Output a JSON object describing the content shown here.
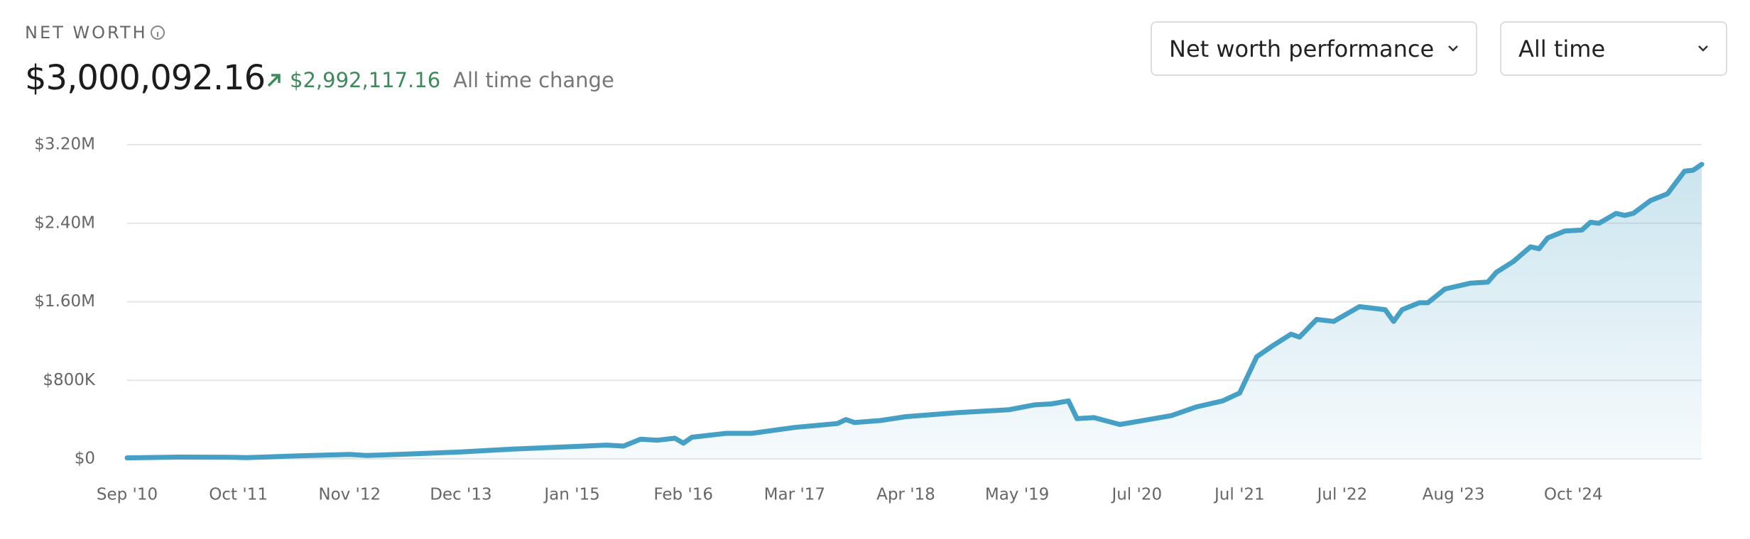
{
  "header": {
    "label": "NET WORTH",
    "value": "$3,000,092.16",
    "change": "$2,992,117.16",
    "change_label": "All time change"
  },
  "controls": {
    "view": "Net worth performance",
    "range": "All time"
  },
  "chart_data": {
    "type": "area",
    "x": [
      "2010-09",
      "2011-03",
      "2011-09",
      "2011-11",
      "2012-05",
      "2012-11",
      "2013-01",
      "2013-06",
      "2013-12",
      "2014-06",
      "2015-01",
      "2015-05",
      "2015-07",
      "2015-09",
      "2015-11",
      "2016-01",
      "2016-02",
      "2016-03",
      "2016-07",
      "2016-10",
      "2017-03",
      "2017-08",
      "2017-09",
      "2017-10",
      "2018-01",
      "2018-04",
      "2018-10",
      "2019-04",
      "2019-07",
      "2019-09",
      "2019-11",
      "2019-12",
      "2020-02",
      "2020-05",
      "2020-07",
      "2020-11",
      "2021-02",
      "2021-05",
      "2021-07",
      "2021-09",
      "2021-11",
      "2022-01",
      "2022-02",
      "2022-04",
      "2022-06",
      "2022-09",
      "2022-12",
      "2023-01",
      "2023-02",
      "2023-04",
      "2023-05",
      "2023-07",
      "2023-10",
      "2023-12",
      "2024-01",
      "2024-03",
      "2024-05",
      "2024-06",
      "2024-07",
      "2024-09",
      "2024-11",
      "2024-12",
      "2025-01",
      "2025-03",
      "2025-04",
      "2025-05",
      "2025-07",
      "2025-09",
      "2025-11",
      "2025-12",
      "2026-01"
    ],
    "values": [
      10000,
      18000,
      16000,
      12000,
      30000,
      45000,
      35000,
      50000,
      70000,
      100000,
      125000,
      140000,
      130000,
      200000,
      190000,
      210000,
      160000,
      220000,
      260000,
      260000,
      320000,
      360000,
      400000,
      370000,
      390000,
      430000,
      470000,
      500000,
      550000,
      560000,
      590000,
      410000,
      420000,
      350000,
      380000,
      440000,
      530000,
      590000,
      670000,
      1040000,
      1160000,
      1270000,
      1240000,
      1420000,
      1400000,
      1550000,
      1520000,
      1400000,
      1520000,
      1590000,
      1590000,
      1730000,
      1790000,
      1800000,
      1900000,
      2010000,
      2160000,
      2140000,
      2250000,
      2320000,
      2330000,
      2410000,
      2400000,
      2500000,
      2480000,
      2500000,
      2630000,
      2700000,
      2930000,
      2940000,
      3000092.16
    ],
    "color": "#46a0c6",
    "xlim": [
      "2010-09",
      "2026-01"
    ],
    "xticks": [
      {
        "value": "2010-09",
        "label": "Sep '10"
      },
      {
        "value": "2011-10",
        "label": "Oct '11"
      },
      {
        "value": "2012-11",
        "label": "Nov '12"
      },
      {
        "value": "2013-12",
        "label": "Dec '13"
      },
      {
        "value": "2015-01",
        "label": "Jan '15"
      },
      {
        "value": "2016-02",
        "label": "Feb '16"
      },
      {
        "value": "2017-03",
        "label": "Mar '17"
      },
      {
        "value": "2018-04",
        "label": "Apr '18"
      },
      {
        "value": "2019-05",
        "label": "May '19"
      },
      {
        "value": "2020-07",
        "label": "Jul '20"
      },
      {
        "value": "2021-07",
        "label": "Jul '21"
      },
      {
        "value": "2022-07",
        "label": "Jul '22"
      },
      {
        "value": "2023-08",
        "label": "Aug '23"
      },
      {
        "value": "2024-10",
        "label": "Oct '24"
      }
    ],
    "ylim": [
      0,
      3200000
    ],
    "yticks": [
      {
        "value": 0,
        "label": "$0"
      },
      {
        "value": 800000,
        "label": "$800K"
      },
      {
        "value": 1600000,
        "label": "$1.60M"
      },
      {
        "value": 2400000,
        "label": "$2.40M"
      },
      {
        "value": 3200000,
        "label": "$3.20M"
      }
    ],
    "grid": true
  }
}
